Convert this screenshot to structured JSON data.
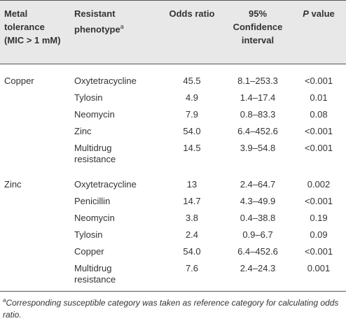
{
  "table": {
    "header": [
      {
        "text": "Metal tolerance (MIC > 1 mM)"
      },
      {
        "text": "Resistant phenotype",
        "note": "a"
      },
      {
        "text": "Odds ratio"
      },
      {
        "text": "95% Confidence interval"
      },
      {
        "italic": "P",
        "text": "value"
      }
    ],
    "groups": [
      {
        "metal": "Copper",
        "rows": [
          [
            "Oxytetracycline",
            "45.5",
            "8.1–253.3",
            "<0.001"
          ],
          [
            "Tylosin",
            "4.9",
            "1.4–17.4",
            "0.01"
          ],
          [
            "Neomycin",
            "7.9",
            "0.8–83.3",
            "0.08"
          ],
          [
            "Zinc",
            "54.0",
            "6.4–452.6",
            "<0.001"
          ],
          [
            "Multidrug resistance",
            "14.5",
            "3.9–54.8",
            "<0.001"
          ]
        ]
      },
      {
        "metal": "Zinc",
        "rows": [
          [
            "Oxytetracycline",
            "13",
            "2.4–64.7",
            "0.002"
          ],
          [
            "Penicillin",
            "14.7",
            "4.3–49.9",
            "<0.001"
          ],
          [
            "Neomycin",
            "3.8",
            "0.4–38.8",
            "0.19"
          ],
          [
            "Tylosin",
            "2.4",
            "0.9–6.7",
            "0.09"
          ],
          [
            "Copper",
            "54.0",
            "6.4–452.6",
            "<0.001"
          ],
          [
            "Multidrug resistance",
            "7.6",
            "2.4–24.3",
            "0.001"
          ]
        ]
      }
    ],
    "footnote": {
      "marker": "a",
      "text": "Corresponding susceptible category was taken as reference category for calculating odds ratio."
    }
  }
}
